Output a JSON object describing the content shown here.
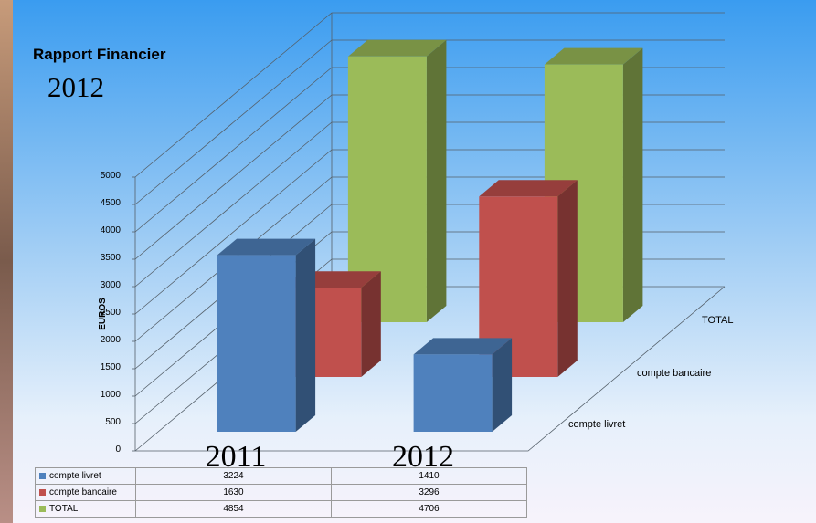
{
  "chart_data": {
    "type": "bar",
    "style": "3d-column",
    "title": "Rapport Financier",
    "subtitle": "2012",
    "ylabel": "EUROS",
    "ylim": [
      0,
      5000
    ],
    "yticks": [
      "0",
      "500",
      "1000",
      "1500",
      "2000",
      "2500",
      "3000",
      "3500",
      "4000",
      "4500",
      "5000"
    ],
    "categories": [
      "2011",
      "2012"
    ],
    "series": [
      {
        "name": "compte livret",
        "values": [
          3224,
          1410
        ],
        "values_text": [
          "3224",
          "1410"
        ],
        "color": "#4f81bd"
      },
      {
        "name": "compte bancaire",
        "values": [
          1630,
          3296
        ],
        "values_text": [
          "1630",
          "3296"
        ],
        "color": "#c0504d"
      },
      {
        "name": "TOTAL",
        "values": [
          4854,
          4706
        ],
        "values_text": [
          "4854",
          "4706"
        ],
        "color": "#9bbb59"
      }
    ],
    "depth_axis_labels": [
      "compte livret",
      "compte bancaire",
      "TOTAL"
    ],
    "grid": true,
    "legend": "data-table"
  }
}
